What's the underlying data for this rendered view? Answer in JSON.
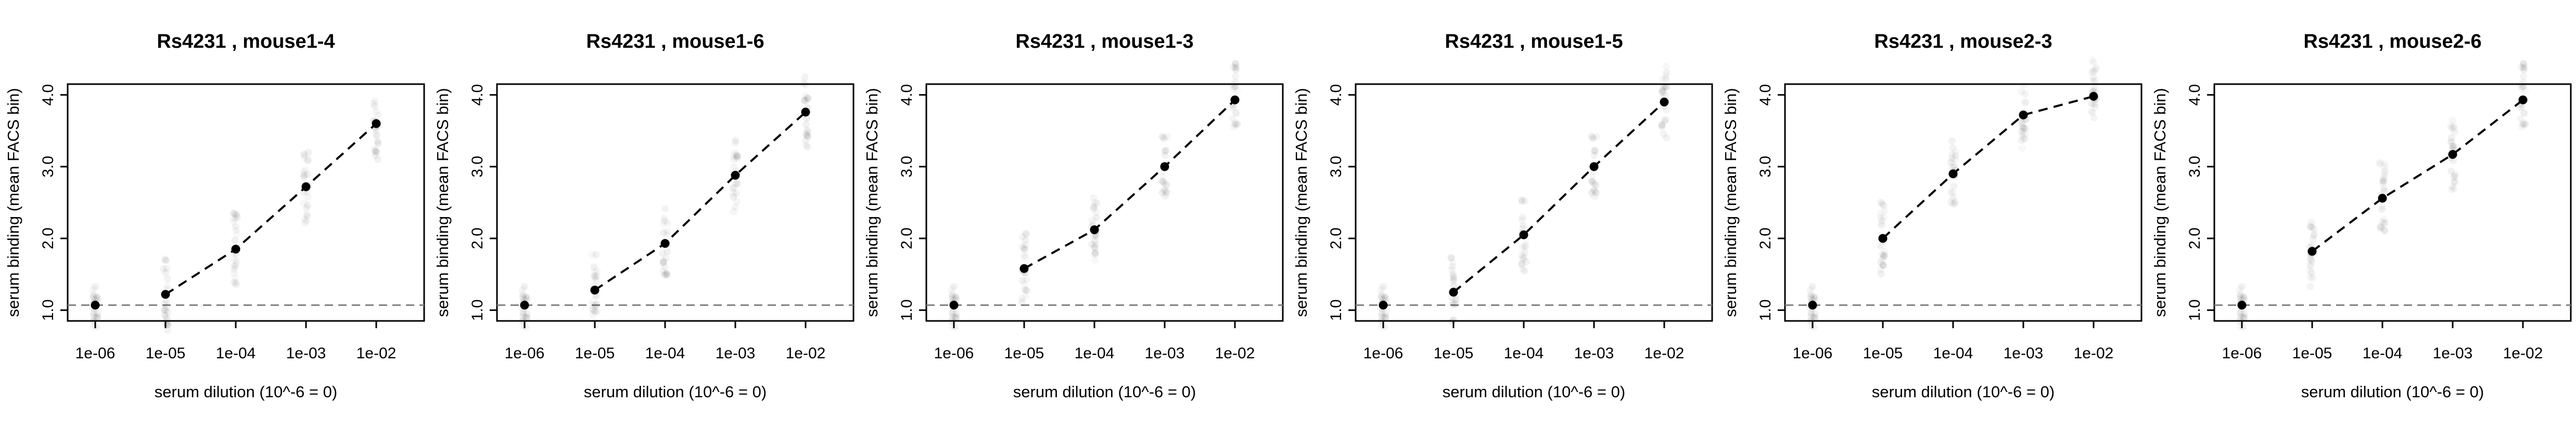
{
  "figure": {
    "panel_count": 6
  },
  "chart_data": [
    {
      "type": "line",
      "title": "Rs4231 , mouse1-4",
      "xlabel": "serum dilution (10^-6 = 0)",
      "ylabel": "serum binding (mean FACS bin)",
      "x_scale": "log",
      "x": [
        1e-06,
        1e-05,
        0.0001,
        0.001,
        0.01
      ],
      "x_tick_labels": [
        "1e-06",
        "1e-05",
        "1e-04",
        "1e-03",
        "1e-02"
      ],
      "y_tick_labels": [
        "1.0",
        "2.0",
        "3.0",
        "4.0"
      ],
      "y_ticks": [
        1,
        2,
        3,
        4
      ],
      "ylim": [
        0.85,
        4.15
      ],
      "baseline": 1.07,
      "series": [
        {
          "values": [
            1.07,
            1.22,
            1.85,
            2.72,
            3.6
          ],
          "style": "dashed",
          "color": "#000000"
        }
      ],
      "dashed_segment_start_index": 1,
      "grid": false,
      "legend": "none"
    },
    {
      "type": "line",
      "title": "Rs4231 , mouse1-6",
      "xlabel": "serum dilution (10^-6 = 0)",
      "ylabel": "serum binding (mean FACS bin)",
      "x_scale": "log",
      "x": [
        1e-06,
        1e-05,
        0.0001,
        0.001,
        0.01
      ],
      "x_tick_labels": [
        "1e-06",
        "1e-05",
        "1e-04",
        "1e-03",
        "1e-02"
      ],
      "y_tick_labels": [
        "1.0",
        "2.0",
        "3.0",
        "4.0"
      ],
      "y_ticks": [
        1,
        2,
        3,
        4
      ],
      "ylim": [
        0.85,
        4.15
      ],
      "baseline": 1.07,
      "series": [
        {
          "values": [
            1.07,
            1.28,
            1.93,
            2.88,
            3.76
          ],
          "style": "dashed",
          "color": "#000000"
        }
      ],
      "dashed_segment_start_index": 1,
      "grid": false,
      "legend": "none"
    },
    {
      "type": "line",
      "title": "Rs4231 , mouse1-3",
      "xlabel": "serum dilution (10^-6 = 0)",
      "ylabel": "serum binding (mean FACS bin)",
      "x_scale": "log",
      "x": [
        1e-06,
        1e-05,
        0.0001,
        0.001,
        0.01
      ],
      "x_tick_labels": [
        "1e-06",
        "1e-05",
        "1e-04",
        "1e-03",
        "1e-02"
      ],
      "y_tick_labels": [
        "1.0",
        "2.0",
        "3.0",
        "4.0"
      ],
      "y_ticks": [
        1,
        2,
        3,
        4
      ],
      "ylim": [
        0.85,
        4.15
      ],
      "baseline": 1.07,
      "series": [
        {
          "values": [
            1.07,
            1.58,
            2.12,
            3.0,
            3.93
          ],
          "style": "dashed",
          "color": "#000000"
        }
      ],
      "dashed_segment_start_index": 1,
      "grid": false,
      "legend": "none"
    },
    {
      "type": "line",
      "title": "Rs4231 , mouse1-5",
      "xlabel": "serum dilution (10^-6 = 0)",
      "ylabel": "serum binding (mean FACS bin)",
      "x_scale": "log",
      "x": [
        1e-06,
        1e-05,
        0.0001,
        0.001,
        0.01
      ],
      "x_tick_labels": [
        "1e-06",
        "1e-05",
        "1e-04",
        "1e-03",
        "1e-02"
      ],
      "y_tick_labels": [
        "1.0",
        "2.0",
        "3.0",
        "4.0"
      ],
      "y_ticks": [
        1,
        2,
        3,
        4
      ],
      "ylim": [
        0.85,
        4.15
      ],
      "baseline": 1.07,
      "series": [
        {
          "values": [
            1.07,
            1.25,
            2.05,
            3.0,
            3.9
          ],
          "style": "dashed",
          "color": "#000000"
        }
      ],
      "dashed_segment_start_index": 1,
      "grid": false,
      "legend": "none"
    },
    {
      "type": "line",
      "title": "Rs4231 , mouse2-3",
      "xlabel": "serum dilution (10^-6 = 0)",
      "ylabel": "serum binding (mean FACS bin)",
      "x_scale": "log",
      "x": [
        1e-06,
        1e-05,
        0.0001,
        0.001,
        0.01
      ],
      "x_tick_labels": [
        "1e-06",
        "1e-05",
        "1e-04",
        "1e-03",
        "1e-02"
      ],
      "y_tick_labels": [
        "1.0",
        "2.0",
        "3.0",
        "4.0"
      ],
      "y_ticks": [
        1,
        2,
        3,
        4
      ],
      "ylim": [
        0.85,
        4.15
      ],
      "baseline": 1.07,
      "series": [
        {
          "values": [
            1.07,
            2.0,
            2.9,
            3.72,
            3.98
          ],
          "style": "dashed",
          "color": "#000000"
        }
      ],
      "dashed_segment_start_index": 1,
      "grid": false,
      "legend": "none"
    },
    {
      "type": "line",
      "title": "Rs4231 , mouse2-6",
      "xlabel": "serum dilution (10^-6 = 0)",
      "ylabel": "serum binding (mean FACS bin)",
      "x_scale": "log",
      "x": [
        1e-06,
        1e-05,
        0.0001,
        0.001,
        0.01
      ],
      "x_tick_labels": [
        "1e-06",
        "1e-05",
        "1e-04",
        "1e-03",
        "1e-02"
      ],
      "y_tick_labels": [
        "1.0",
        "2.0",
        "3.0",
        "4.0"
      ],
      "y_ticks": [
        1,
        2,
        3,
        4
      ],
      "ylim": [
        0.85,
        4.15
      ],
      "baseline": 1.07,
      "series": [
        {
          "values": [
            1.07,
            1.82,
            2.56,
            3.17,
            3.93
          ],
          "style": "dashed",
          "color": "#000000"
        }
      ],
      "dashed_segment_start_index": 1,
      "grid": false,
      "legend": "none"
    }
  ]
}
